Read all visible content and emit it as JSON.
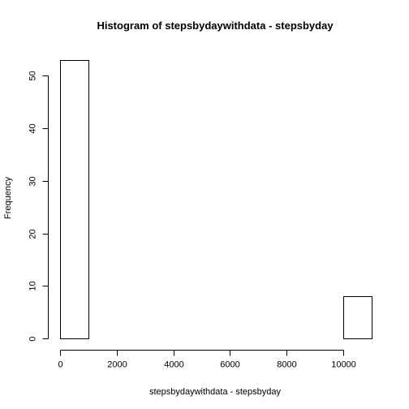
{
  "chart_data": {
    "type": "bar",
    "title": "Histogram of stepsbydaywithdata - stepsbyday",
    "xlabel": "stepsbydaywithdata - stepsbyday",
    "ylabel": "Frequency",
    "bins": [
      {
        "from": 0,
        "to": 1000,
        "count": 53
      },
      {
        "from": 1000,
        "to": 2000,
        "count": 0
      },
      {
        "from": 2000,
        "to": 3000,
        "count": 0
      },
      {
        "from": 3000,
        "to": 4000,
        "count": 0
      },
      {
        "from": 4000,
        "to": 5000,
        "count": 0
      },
      {
        "from": 5000,
        "to": 6000,
        "count": 0
      },
      {
        "from": 6000,
        "to": 7000,
        "count": 0
      },
      {
        "from": 7000,
        "to": 8000,
        "count": 0
      },
      {
        "from": 8000,
        "to": 9000,
        "count": 0
      },
      {
        "from": 9000,
        "to": 10000,
        "count": 0
      },
      {
        "from": 10000,
        "to": 11000,
        "count": 8
      }
    ],
    "xlim": [
      0,
      11000
    ],
    "ylim": [
      0,
      53
    ],
    "x_ticks": [
      0,
      2000,
      4000,
      6000,
      8000,
      10000
    ],
    "x_tick_labels": [
      "0",
      "2000",
      "4000",
      "6000",
      "8000",
      "10000"
    ],
    "y_ticks": [
      0,
      10,
      20,
      30,
      40,
      50
    ],
    "y_tick_labels": [
      "0",
      "10",
      "20",
      "30",
      "40",
      "50"
    ],
    "grid": false,
    "legend": "none"
  }
}
